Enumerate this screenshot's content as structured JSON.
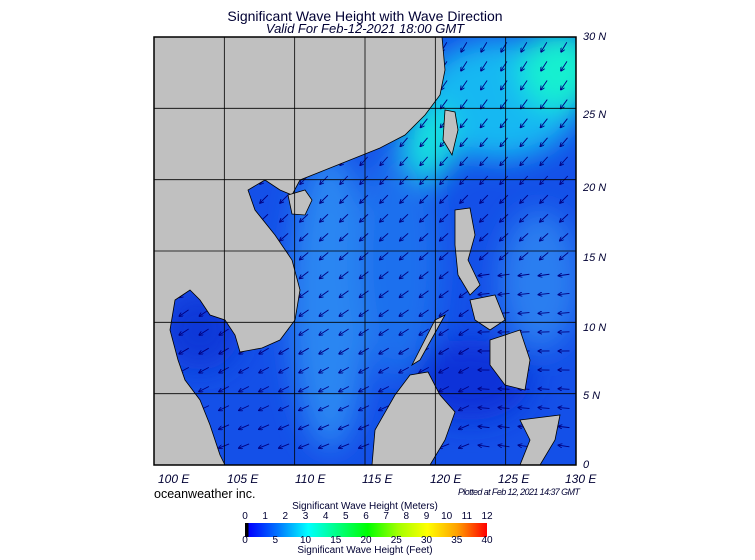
{
  "title": "Significant Wave Height with Wave Direction",
  "subtitle": "Valid For Feb-12-2021 18:00 GMT",
  "map": {
    "region": "South China Sea",
    "lon_range": [
      100,
      130
    ],
    "lat_range": [
      0,
      30
    ],
    "lat_labels": [
      "30 N",
      "25 N",
      "20 N",
      "15 N",
      "10 N",
      "5 N",
      "0"
    ],
    "lon_labels": [
      "100 E",
      "105 E",
      "110 E",
      "115 E",
      "120 E",
      "125 E",
      "130 E"
    ],
    "predominant_wave_direction": "from northeast (arrows pointing southwest)",
    "colors": {
      "land": "#c0c0c0",
      "ocean_low": "#0a3fe0",
      "ocean_mid": "#1f8af5",
      "ocean_high": "#10f0e0"
    }
  },
  "brand": "oceanweather inc.",
  "plotted": "Plotted at Feb 12, 2021 14:37 GMT",
  "colorbar": {
    "meters_title": "Significant Wave Height (Meters)",
    "feet_title": "Significant Wave Height (Feet)",
    "meters_ticks": [
      "0",
      "1",
      "2",
      "3",
      "4",
      "5",
      "6",
      "7",
      "8",
      "9",
      "10",
      "11",
      "12"
    ],
    "feet_ticks": [
      "0",
      "5",
      "10",
      "15",
      "20",
      "25",
      "30",
      "35",
      "40"
    ],
    "stops": [
      "#000000",
      "#0000ff",
      "#0078ff",
      "#00ffff",
      "#00ff80",
      "#00ff00",
      "#a0ff00",
      "#ffff00",
      "#ffa000",
      "#ff0000"
    ]
  }
}
